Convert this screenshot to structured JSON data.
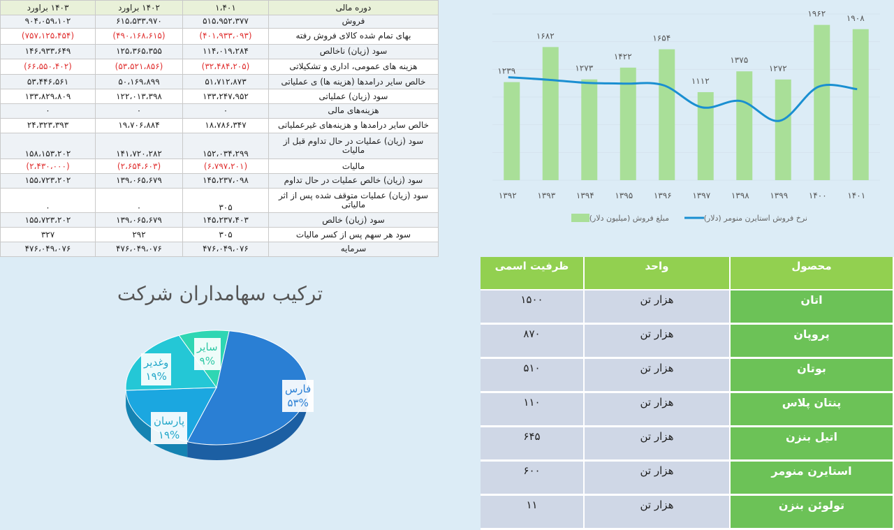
{
  "financial_table": {
    "headers": [
      "دوره مالی",
      "۱،۴۰۱",
      "۱۴۰۲ براورد",
      "۱۴۰۳ براورد"
    ],
    "rows": [
      {
        "label": "فروش",
        "v1401": "۵۱۵،۹۵۲،۳۷۷",
        "v1402": "۶۱۵،۵۳۳،۹۷۰",
        "v1403": "۹۰۴،۰۵۹،۱۰۲",
        "neg": false
      },
      {
        "label": "بهای تمام شده کالای فروش رفته",
        "v1401": "(۴۰۱،۹۳۳،۰۹۳)",
        "v1402": "(۴۹۰،۱۶۸،۶۱۵)",
        "v1403": "(۷۵۷،۱۲۵،۴۵۴)",
        "neg": true
      },
      {
        "label": "سود (زیان) ناخالص",
        "v1401": "۱۱۴،۰۱۹،۲۸۴",
        "v1402": "۱۲۵،۳۶۵،۳۵۵",
        "v1403": "۱۴۶،۹۳۳،۶۴۹",
        "neg": false
      },
      {
        "label": "هزینه های عمومی، اداری و تشکیلاتی",
        "v1401": "(۳۲،۴۸۴،۲۰۵)",
        "v1402": "(۵۳،۵۲۱،۸۵۶)",
        "v1403": "(۶۶،۵۵۰،۴۰۲)",
        "neg": true
      },
      {
        "label": "خالص سایر درامدها (هزینه ها) ی عملیاتی",
        "v1401": "۵۱،۷۱۲،۸۷۳",
        "v1402": "۵۰،۱۶۹،۸۹۹",
        "v1403": "۵۳،۴۴۶،۵۶۱",
        "neg": false
      },
      {
        "label": "سود (زیان) عملیاتی",
        "v1401": "۱۳۳،۲۴۷،۹۵۲",
        "v1402": "۱۲۲،۰۱۳،۳۹۸",
        "v1403": "۱۳۳،۸۲۹،۸۰۹",
        "neg": false
      },
      {
        "label": "هزینه‌های مالی",
        "v1401": "۰",
        "v1402": "۰",
        "v1403": "۰",
        "neg": false
      },
      {
        "label": "خالص سایر درامدها و هزینه‌های غیرعملیاتی",
        "v1401": "۱۸،۷۸۶،۳۴۷",
        "v1402": "۱۹،۷۰۶،۸۸۴",
        "v1403": "۲۴،۳۲۳،۳۹۳",
        "neg": false
      },
      {
        "label": "سود (زیان) عملیات در حال تداوم قبل از مالیات",
        "v1401": "۱۵۲،۰۳۴،۲۹۹",
        "v1402": "۱۴۱،۷۲۰،۲۸۲",
        "v1403": "۱۵۸،۱۵۳،۲۰۲",
        "neg": false
      },
      {
        "label": "مالیات",
        "v1401": "(۶،۷۹۷،۲۰۱)",
        "v1402": "(۲،۶۵۴،۶۰۳)",
        "v1403": "(۲،۴۳۰،۰۰۰)",
        "neg": true
      },
      {
        "label": "سود (زیان) خالص عملیات در حال تداوم",
        "v1401": "۱۴۵،۲۳۷،۰۹۸",
        "v1402": "۱۳۹،۰۶۵،۶۷۹",
        "v1403": "۱۵۵،۷۲۳،۲۰۲",
        "neg": false
      },
      {
        "label": "سود (زیان) عملیات متوقف شده پس از اثر مالیاتی",
        "v1401": "۳۰۵",
        "v1402": "۰",
        "v1403": "۰",
        "neg": false
      },
      {
        "label": "سود (زیان) خالص",
        "v1401": "۱۴۵،۲۳۷،۴۰۳",
        "v1402": "۱۳۹،۰۶۵،۶۷۹",
        "v1403": "۱۵۵،۷۲۳،۲۰۲",
        "neg": false
      },
      {
        "label": "سود هر سهم پس از کسر مالیات",
        "v1401": "۳۰۵",
        "v1402": "۲۹۲",
        "v1403": "۳۲۷",
        "neg": false
      },
      {
        "label": "سرمایه",
        "v1401": "۴۷۶،۰۴۹،۰۷۶",
        "v1402": "۴۷۶،۰۴۹،۰۷۶",
        "v1403": "۴۷۶،۰۴۹،۰۷۶",
        "neg": false
      }
    ]
  },
  "pie": {
    "title": "ترکیب سهامداران شرکت"
  },
  "product_table": {
    "headers": [
      "محصول",
      "واحد",
      "ظرفیت اسمی"
    ],
    "rows": [
      {
        "name": "اتان",
        "unit": "هزار تن",
        "cap": "۱۵۰۰"
      },
      {
        "name": "پروپان",
        "unit": "هزار تن",
        "cap": "۸۷۰"
      },
      {
        "name": "بوتان",
        "unit": "هزار تن",
        "cap": "۵۱۰"
      },
      {
        "name": "پنتان پلاس",
        "unit": "هزار تن",
        "cap": "۱۱۰"
      },
      {
        "name": "اتیل بنزن",
        "unit": "هزار تن",
        "cap": "۶۴۵"
      },
      {
        "name": "استایرن منومر",
        "unit": "هزار تن",
        "cap": "۶۰۰"
      },
      {
        "name": "تولوئن بنزن",
        "unit": "هزار تن",
        "cap": "۱۱"
      }
    ]
  },
  "colors": {
    "bar": "#a9df98",
    "line": "#1a8fd1",
    "pie_fars": "#2a7fd4",
    "pie_parsan": "#1ba7e0",
    "pie_ghadir": "#24c7d6",
    "pie_other": "#2fd6b3",
    "neg_text": "#e03030"
  },
  "chart_data": [
    {
      "type": "bar",
      "categories": [
        "۱۳۹۲",
        "۱۳۹۳",
        "۱۳۹۴",
        "۱۳۹۵",
        "۱۳۹۶",
        "۱۳۹۷",
        "۱۳۹۸",
        "۱۳۹۹",
        "۱۴۰۰",
        "۱۴۰۱"
      ],
      "category_values": [
        1392,
        1393,
        1394,
        1395,
        1396,
        1397,
        1398,
        1399,
        1400,
        1401
      ],
      "series": [
        {
          "name": "مبلغ فروش (میلیون دلار)",
          "type": "bar",
          "values": [
            1239,
            1682,
            1273,
            1422,
            1654,
            1112,
            1375,
            1272,
            1962,
            1908
          ],
          "labels": [
            "۱۲۳۹",
            "۱۶۸۲",
            "۱۲۷۳",
            "۱۴۲۲",
            "۱۶۵۴",
            "۱۱۱۲",
            "۱۳۷۵",
            "۱۲۷۲",
            "۱۹۶۲",
            "۱۹۰۸"
          ]
        },
        {
          "name": "نرخ فروش استایرن منومر (دلار)",
          "type": "line",
          "values": [
            1300,
            1270,
            1230,
            1220,
            1200,
            920,
            1000,
            750,
            1180,
            1150
          ]
        }
      ],
      "ylim": [
        0,
        2100
      ],
      "grid": true,
      "legend": "bottom"
    },
    {
      "type": "pie",
      "slices": [
        {
          "name": "فارس",
          "label": "۵۳%",
          "value": 53
        },
        {
          "name": "پارسان",
          "label": "۱۹%",
          "value": 19
        },
        {
          "name": "وغدیر",
          "label": "۱۹%",
          "value": 19
        },
        {
          "name": "سایر",
          "label": "۹%",
          "value": 9
        }
      ]
    }
  ]
}
